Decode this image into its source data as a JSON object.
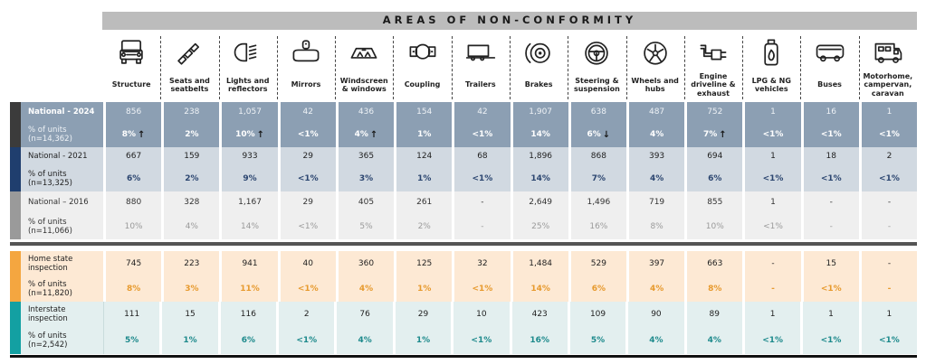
{
  "header": {
    "title": "AREAS OF NON-CONFORMITY"
  },
  "categories": [
    {
      "label": "Structure",
      "icon": "truck-front-icon"
    },
    {
      "label": "Seats and seatbelts",
      "icon": "seatbelt-icon"
    },
    {
      "label": "Lights and reflectors",
      "icon": "headlight-icon"
    },
    {
      "label": "Mirrors",
      "icon": "rearview-mirror-icon"
    },
    {
      "label": "Windscreen & windows",
      "icon": "windscreen-icon"
    },
    {
      "label": "Coupling",
      "icon": "coupling-icon"
    },
    {
      "label": "Trailers",
      "icon": "trailer-icon"
    },
    {
      "label": "Brakes",
      "icon": "brake-disc-icon"
    },
    {
      "label": "Steering & suspension",
      "icon": "steering-wheel-icon"
    },
    {
      "label": "Wheels and hubs",
      "icon": "wheel-icon"
    },
    {
      "label": "Engine driveline & exhaust",
      "icon": "exhaust-icon"
    },
    {
      "label": "LPG & NG vehicles",
      "icon": "gas-cylinder-icon"
    },
    {
      "label": "Buses",
      "icon": "bus-icon"
    },
    {
      "label": "Motorhome, campervan, caravan",
      "icon": "motorhome-icon"
    }
  ],
  "groups": [
    {
      "key": "g2024",
      "bar_color": "#3b3b3b",
      "label": "National - 2024",
      "sub_label": "% of units (n=14,362)",
      "counts": [
        "856",
        "238",
        "1,057",
        "42",
        "436",
        "154",
        "42",
        "1,907",
        "638",
        "487",
        "752",
        "1",
        "16",
        "1"
      ],
      "percents": [
        "8%",
        "2%",
        "10%",
        "<1%",
        "4%",
        "1%",
        "<1%",
        "14%",
        "6%",
        "4%",
        "7%",
        "<1%",
        "<1%",
        "<1%"
      ],
      "trends": [
        "up",
        "",
        "up",
        "",
        "up",
        "",
        "",
        "",
        "down",
        "",
        "up",
        "",
        "",
        ""
      ]
    },
    {
      "key": "g2021",
      "bar_color": "#1f3e6e",
      "label": "National - 2021",
      "sub_label": "% of units (n=13,325)",
      "counts": [
        "667",
        "159",
        "933",
        "29",
        "365",
        "124",
        "68",
        "1,896",
        "868",
        "393",
        "694",
        "1",
        "18",
        "2"
      ],
      "percents": [
        "6%",
        "2%",
        "9%",
        "<1%",
        "3%",
        "1%",
        "<1%",
        "14%",
        "7%",
        "4%",
        "6%",
        "<1%",
        "<1%",
        "<1%"
      ],
      "trends": [
        "",
        "",
        "",
        "",
        "",
        "",
        "",
        "",
        "",
        "",
        "",
        "",
        "",
        ""
      ]
    },
    {
      "key": "g2016",
      "bar_color": "#9a9a9a",
      "label": "National – 2016",
      "sub_label": "% of units (n=11,066)",
      "counts": [
        "880",
        "328",
        "1,167",
        "29",
        "405",
        "261",
        "-",
        "2,649",
        "1,496",
        "719",
        "855",
        "1",
        "-",
        "-"
      ],
      "percents": [
        "10%",
        "4%",
        "14%",
        "<1%",
        "5%",
        "2%",
        "-",
        "25%",
        "16%",
        "8%",
        "10%",
        "<1%",
        "-",
        "-"
      ],
      "trends": [
        "",
        "",
        "",
        "",
        "",
        "",
        "",
        "",
        "",
        "",
        "",
        "",
        "",
        ""
      ]
    },
    {
      "key": "ghome",
      "bar_color": "#f4a640",
      "label": "Home state inspection",
      "sub_label": "% of units (n=11,820)",
      "counts": [
        "745",
        "223",
        "941",
        "40",
        "360",
        "125",
        "32",
        "1,484",
        "529",
        "397",
        "663",
        "-",
        "15",
        "-"
      ],
      "percents": [
        "8%",
        "3%",
        "11%",
        "<1%",
        "4%",
        "1%",
        "<1%",
        "14%",
        "6%",
        "4%",
        "8%",
        "-",
        "<1%",
        "-"
      ],
      "trends": [
        "",
        "",
        "",
        "",
        "",
        "",
        "",
        "",
        "",
        "",
        "",
        "",
        "",
        ""
      ]
    },
    {
      "key": "ginter",
      "bar_color": "#13a0a2",
      "label": "Interstate inspection",
      "sub_label": "% of units (n=2,542)",
      "counts": [
        "111",
        "15",
        "116",
        "2",
        "76",
        "29",
        "10",
        "423",
        "109",
        "90",
        "89",
        "1",
        "1",
        "1"
      ],
      "percents": [
        "5%",
        "1%",
        "6%",
        "<1%",
        "4%",
        "1%",
        "<1%",
        "16%",
        "5%",
        "4%",
        "4%",
        "<1%",
        "<1%",
        "<1%"
      ],
      "trends": [
        "",
        "",
        "",
        "",
        "",
        "",
        "",
        "",
        "",
        "",
        "",
        "",
        "",
        ""
      ]
    }
  ],
  "trend_symbols": {
    "up": "↑",
    "down": "↓"
  },
  "colors": {
    "header_bar": "#bcbcbc",
    "national_2024_fill": "#8c9fb3",
    "national_2021_fill": "#d1d9e1",
    "national_2016_fill": "#efefef",
    "home_state_fill": "#fde9d4",
    "home_state_accent": "#e79a2e",
    "interstate_fill": "#e3efef",
    "interstate_accent": "#1e8a8c"
  }
}
